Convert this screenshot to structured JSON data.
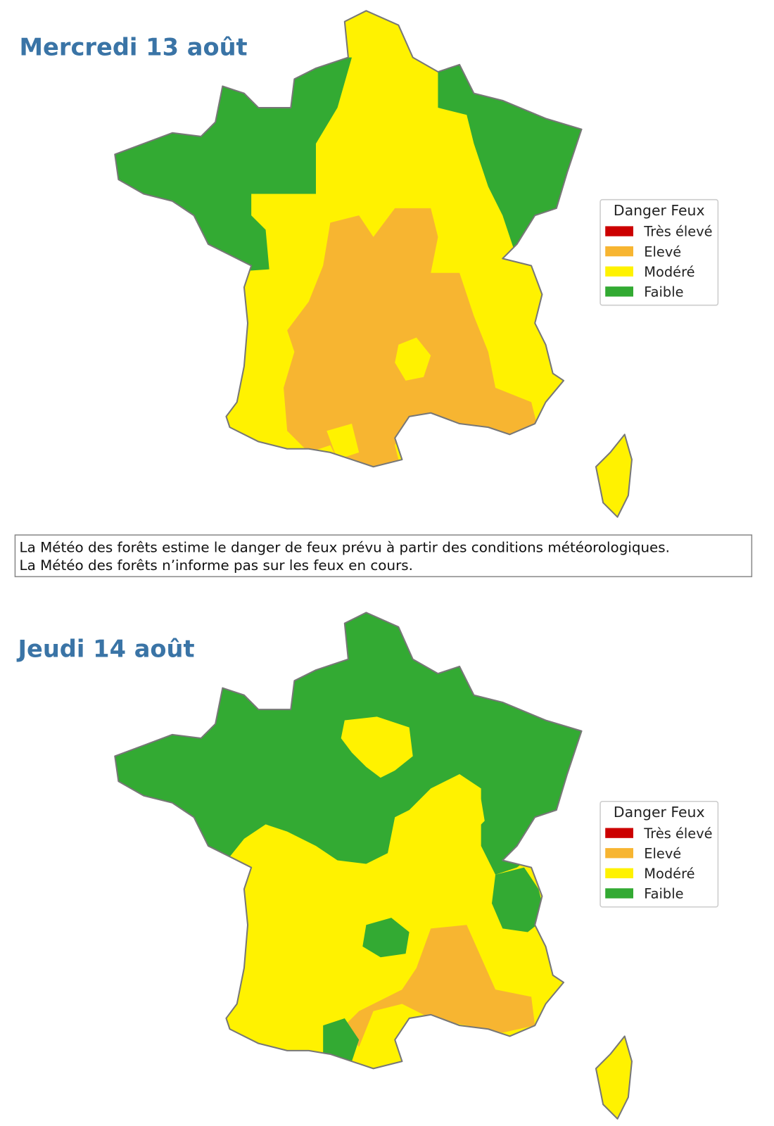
{
  "maps": [
    {
      "title": "Mercredi 13 août",
      "legend": {
        "title": "Danger Feux",
        "items": [
          {
            "label": "Très élevé",
            "color": "#cc0000"
          },
          {
            "label": "Elevé",
            "color": "#f7b531"
          },
          {
            "label": "Modéré",
            "color": "#fff200"
          },
          {
            "label": "Faible",
            "color": "#33aa33"
          }
        ]
      }
    },
    {
      "title": "Jeudi 14 août",
      "legend": {
        "title": "Danger Feux",
        "items": [
          {
            "label": "Très élevé",
            "color": "#cc0000"
          },
          {
            "label": "Elevé",
            "color": "#f7b531"
          },
          {
            "label": "Modéré",
            "color": "#fff200"
          },
          {
            "label": "Faible",
            "color": "#33aa33"
          }
        ]
      }
    }
  ],
  "note": {
    "lines": [
      "La Météo des forêts estime le danger de feux prévu à partir des conditions météorologiques.",
      "La Météo des forêts n’informe pas sur les feux en cours."
    ]
  }
}
